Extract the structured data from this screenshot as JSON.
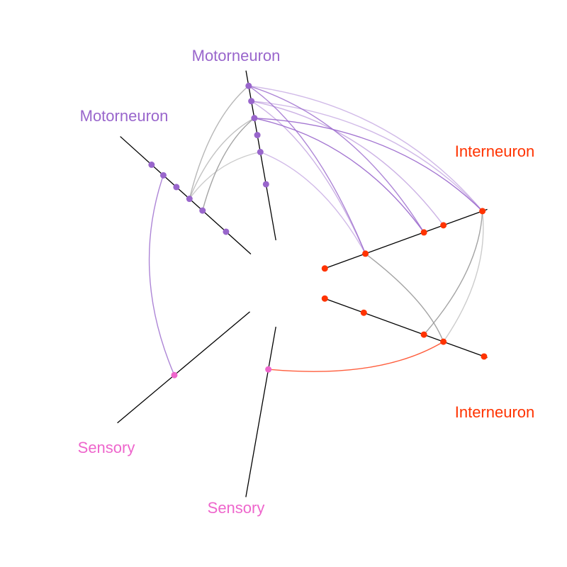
{
  "colors": {
    "motor": "#9966cc",
    "inter": "#ff3300",
    "sensory": "#ee66cc",
    "axis": "#000000",
    "edge_gray": "#999999"
  },
  "axes": [
    {
      "id": "motor-top",
      "label": "Motorneuron",
      "group": "motor"
    },
    {
      "id": "motor-left",
      "label": "Motorneuron",
      "group": "motor"
    },
    {
      "id": "inter-upper",
      "label": "Interneuron",
      "group": "inter"
    },
    {
      "id": "inter-lower",
      "label": "Interneuron",
      "group": "inter"
    },
    {
      "id": "sensory-left",
      "label": "Sensory",
      "group": "sensory"
    },
    {
      "id": "sensory-bottom",
      "label": "Sensory",
      "group": "sensory"
    }
  ],
  "nodes": [
    {
      "id": "mt1",
      "axis": "motor-top",
      "r": 0.91
    },
    {
      "id": "mt2",
      "axis": "motor-top",
      "r": 0.82
    },
    {
      "id": "mt3",
      "axis": "motor-top",
      "r": 0.72
    },
    {
      "id": "mt4",
      "axis": "motor-top",
      "r": 0.62
    },
    {
      "id": "mt5",
      "axis": "motor-top",
      "r": 0.52
    },
    {
      "id": "mt6",
      "axis": "motor-top",
      "r": 0.33
    },
    {
      "id": "ml1",
      "axis": "motor-left",
      "r": 0.76
    },
    {
      "id": "ml2",
      "axis": "motor-left",
      "r": 0.67
    },
    {
      "id": "ml3",
      "axis": "motor-left",
      "r": 0.57
    },
    {
      "id": "ml4",
      "axis": "motor-left",
      "r": 0.47
    },
    {
      "id": "ml5",
      "axis": "motor-left",
      "r": 0.37
    },
    {
      "id": "ml6",
      "axis": "motor-left",
      "r": 0.19
    },
    {
      "id": "iu1",
      "axis": "inter-upper",
      "r": 0.0
    },
    {
      "id": "iu2",
      "axis": "inter-upper",
      "r": 0.25
    },
    {
      "id": "iu3",
      "axis": "inter-upper",
      "r": 0.61
    },
    {
      "id": "iu4",
      "axis": "inter-upper",
      "r": 0.73
    },
    {
      "id": "iu5",
      "axis": "inter-upper",
      "r": 0.97
    },
    {
      "id": "il1",
      "axis": "inter-lower",
      "r": 0.0
    },
    {
      "id": "il2",
      "axis": "inter-lower",
      "r": 0.24
    },
    {
      "id": "il3",
      "axis": "inter-lower",
      "r": 0.61
    },
    {
      "id": "il4",
      "axis": "inter-lower",
      "r": 0.73
    },
    {
      "id": "il5",
      "axis": "inter-lower",
      "r": 0.98
    },
    {
      "id": "sl1",
      "axis": "sensory-left",
      "r": 0.57
    },
    {
      "id": "sb1",
      "axis": "sensory-bottom",
      "r": 0.25
    }
  ],
  "edges": [
    {
      "from": "mt1",
      "to": "iu5",
      "color": "#9966cc",
      "opacity": 0.45
    },
    {
      "from": "mt1",
      "to": "iu3",
      "color": "#9966cc",
      "opacity": 0.8
    },
    {
      "from": "mt1",
      "to": "iu2",
      "color": "#9966cc",
      "opacity": 0.8
    },
    {
      "from": "mt1",
      "to": "ml4",
      "color": "#999999",
      "opacity": 0.7
    },
    {
      "from": "mt2",
      "to": "iu5",
      "color": "#9966cc",
      "opacity": 0.45
    },
    {
      "from": "mt2",
      "to": "iu4",
      "color": "#9966cc",
      "opacity": 0.5
    },
    {
      "from": "mt2",
      "to": "iu2",
      "color": "#9966cc",
      "opacity": 0.5
    },
    {
      "from": "mt3",
      "to": "iu5",
      "color": "#9966cc",
      "opacity": 0.9
    },
    {
      "from": "mt3",
      "to": "iu3",
      "color": "#9966cc",
      "opacity": 0.9
    },
    {
      "from": "mt3",
      "to": "ml5",
      "color": "#999999",
      "opacity": 0.9
    },
    {
      "from": "mt3",
      "to": "ml4",
      "color": "#999999",
      "opacity": 0.6
    },
    {
      "from": "mt5",
      "to": "ml4",
      "color": "#999999",
      "opacity": 0.5
    },
    {
      "from": "mt5",
      "to": "iu2",
      "color": "#9966cc",
      "opacity": 0.45
    },
    {
      "from": "ml2",
      "to": "sl1",
      "color": "#9966cc",
      "opacity": 0.8
    },
    {
      "from": "iu2",
      "to": "il4",
      "color": "#999999",
      "opacity": 0.9
    },
    {
      "from": "iu5",
      "to": "il3",
      "color": "#999999",
      "opacity": 0.9
    },
    {
      "from": "iu5",
      "to": "il4",
      "color": "#999999",
      "opacity": 0.5
    },
    {
      "from": "il4",
      "to": "sb1",
      "color": "#ff5533",
      "opacity": 0.95
    }
  ]
}
